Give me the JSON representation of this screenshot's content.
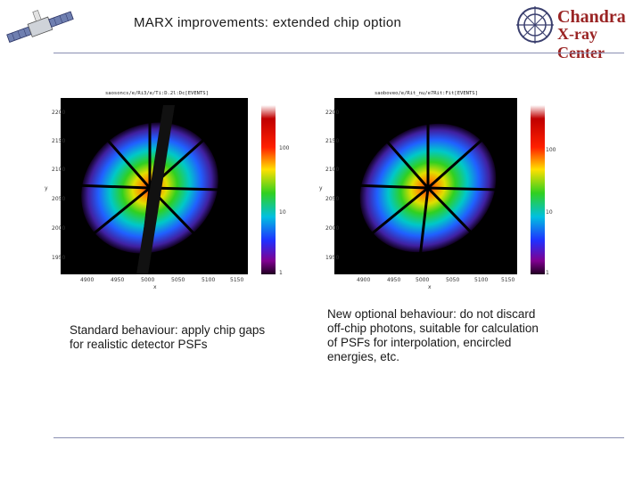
{
  "slide": {
    "title": "MARX improvements: extended chip option",
    "logo": {
      "line1": "Chandra",
      "line2": "X-ray Center"
    }
  },
  "panels": [
    {
      "header": "saosoncs/e/Ri3/e/Ti:D.2l:Dc[EVENTS]",
      "x_ticks": [
        "4900",
        "4950",
        "5000",
        "5050",
        "5100",
        "5150"
      ],
      "y_ticks": [
        "2200",
        "2150",
        "2100",
        "2050",
        "2000",
        "1950"
      ],
      "x_axis": "x",
      "y_axis": "y",
      "colorbar_ticks": [
        "100",
        "10",
        "1"
      ],
      "caption": "Standard behaviour: apply chip gaps for realistic detector PSFs"
    },
    {
      "header": "saoboveo/e/Rit_nu/e7Rit:Fit[EVENTS]",
      "x_ticks": [
        "4900",
        "4950",
        "5000",
        "5050",
        "5100",
        "5150"
      ],
      "y_ticks": [
        "2200",
        "2150",
        "2100",
        "2050",
        "2000",
        "1950"
      ],
      "x_axis": "x",
      "y_axis": "y",
      "colorbar_ticks": [
        "100",
        "10",
        "1"
      ],
      "caption": "New optional  behaviour: do not discard off-chip photons, suitable for calculation of PSFs for interpolation, encircled energies, etc."
    }
  ]
}
